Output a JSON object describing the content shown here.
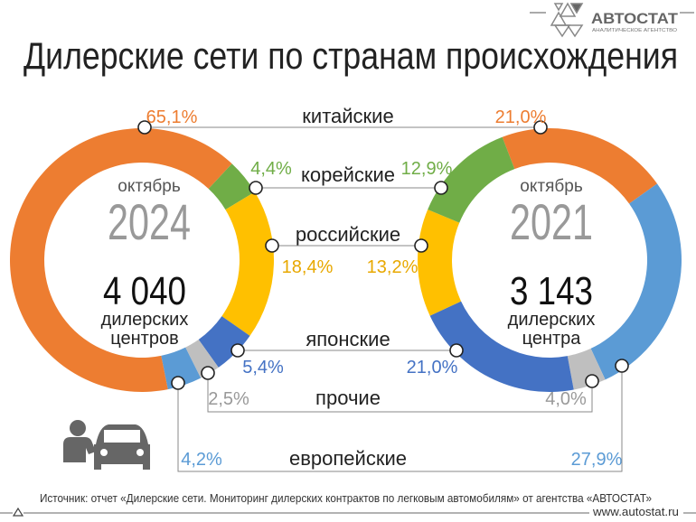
{
  "logo": {
    "name": "АВТОСТАТ",
    "tagline": "АНАЛИТИЧЕСКОЕ АГЕНТСТВО"
  },
  "title": "Дилерские сети по странам происхождения",
  "colors": {
    "китайские": "#ED7D31",
    "корейские": "#70AD47",
    "российские": "#FFC000",
    "японские": "#4472C4",
    "прочие": "#BFBFBF",
    "европейские": "#5B9BD5"
  },
  "chart_data": [
    {
      "type": "pie",
      "style": "donut",
      "period_label": "октябрь",
      "year": "2024",
      "total": "4 040",
      "total_label_1": "дилерских",
      "total_label_2": "центров",
      "categories": [
        "корейские",
        "российские",
        "японские",
        "прочие",
        "европейские",
        "китайские"
      ],
      "values": [
        4.4,
        18.4,
        5.4,
        2.5,
        4.2,
        65.1
      ],
      "labels": [
        "4,4%",
        "18,4%",
        "5,4%",
        "2,5%",
        "4,2%",
        "65,1%"
      ]
    },
    {
      "type": "pie",
      "style": "donut",
      "period_label": "октябрь",
      "year": "2021",
      "total": "3 143",
      "total_label_1": "дилерских",
      "total_label_2": "центра",
      "categories": [
        "китайские",
        "европейские",
        "прочие",
        "японские",
        "российские",
        "корейские"
      ],
      "values": [
        21.0,
        27.9,
        4.0,
        21.0,
        13.2,
        12.9
      ],
      "labels": [
        "21,0%",
        "27,9%",
        "4,0%",
        "21,0%",
        "13,2%",
        "12,9%"
      ]
    }
  ],
  "legend": {
    "chinese": "китайские",
    "korean": "корейские",
    "russian": "российские",
    "japanese": "японские",
    "other": "прочие",
    "european": "европейские"
  },
  "footer": {
    "source": "Источник: отчет «Дилерские сети. Мониторинг дилерских контрактов по легковым автомобилям» от агентства «АВТОСТАТ»",
    "url": "www.autostat.ru"
  }
}
